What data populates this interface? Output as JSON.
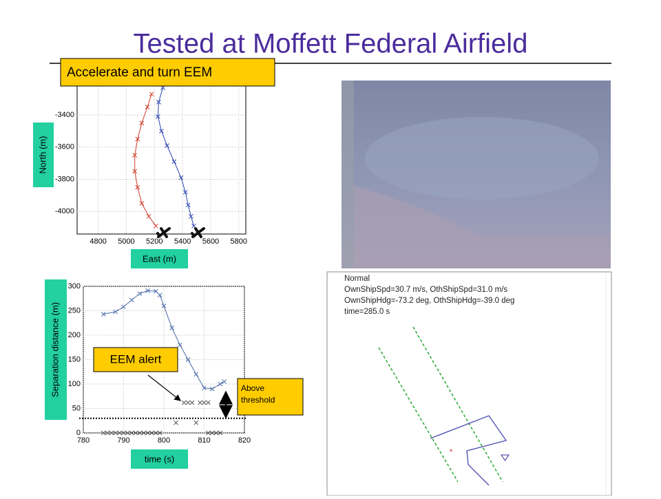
{
  "title": "Tested at Moffett Federal Airfield",
  "banner": "Accelerate and turn EEM",
  "chart_data": [
    {
      "type": "line",
      "xlabel": "East (m)",
      "ylabel": "North (m)",
      "xlim": [
        4650,
        5850
      ],
      "ylim": [
        -4140,
        -3220
      ],
      "xticks": [
        4800,
        5000,
        5200,
        5400,
        5600,
        5800
      ],
      "yticks": [
        -4000,
        -3800,
        -3600,
        -3400
      ],
      "grid": true,
      "series": [
        {
          "color": "#d03a2a",
          "line": true,
          "x": [
            5180,
            5150,
            5110,
            5080,
            5060,
            5060,
            5080,
            5110,
            5160,
            5210
          ],
          "values": [
            -3270,
            -3350,
            -3450,
            -3550,
            -3650,
            -3750,
            -3850,
            -3950,
            -4030,
            -4090
          ]
        },
        {
          "color": "#2a44b0",
          "line": true,
          "x": [
            5260,
            5230,
            5225,
            5250,
            5290,
            5340,
            5390,
            5420,
            5440,
            5460,
            5480
          ],
          "values": [
            -3230,
            -3320,
            -3410,
            -3500,
            -3590,
            -3690,
            -3790,
            -3880,
            -3960,
            -4030,
            -4090
          ]
        }
      ]
    },
    {
      "type": "line",
      "xlabel": "time (s)",
      "ylabel": "Separation distance (m)",
      "xlim": [
        780,
        820
      ],
      "ylim": [
        0,
        300
      ],
      "xticks": [
        780,
        790,
        800,
        810,
        820
      ],
      "yticks": [
        0,
        50,
        100,
        150,
        200,
        250,
        300
      ],
      "grid": true,
      "threshold": 30,
      "series": [
        {
          "color": "#4a6aa8",
          "line": true,
          "x": [
            785,
            788,
            790,
            792,
            794,
            796,
            798,
            799,
            800,
            802,
            804,
            806,
            808,
            810,
            812,
            814,
            815
          ],
          "values": [
            243,
            248,
            258,
            272,
            285,
            291,
            290,
            282,
            260,
            215,
            180,
            150,
            120,
            92,
            90,
            100,
            105
          ]
        },
        {
          "color": "#555555",
          "line": false,
          "x": [
            785,
            786,
            787,
            788,
            789,
            790,
            791,
            792,
            793,
            794,
            795,
            796,
            797,
            798,
            799,
            805,
            806,
            807,
            809,
            810,
            811,
            803,
            808,
            811,
            812,
            813,
            814
          ],
          "values": [
            0,
            0,
            0,
            0,
            0,
            0,
            0,
            0,
            0,
            0,
            0,
            0,
            0,
            0,
            0,
            62,
            62,
            62,
            62,
            62,
            62,
            21,
            21,
            0,
            0,
            0,
            0
          ]
        }
      ]
    }
  ],
  "annotations": {
    "alert": "EEM alert",
    "threshold": "Above threshold"
  },
  "screen": {
    "lines": [
      "Normal",
      "OwnShipSpd=30.7 m/s, OthShipSpd=31.0 m/s",
      "OwnShipHdg=-73.2 deg, OthShipHdg=-39.0 deg",
      "time=285.0 s"
    ]
  }
}
